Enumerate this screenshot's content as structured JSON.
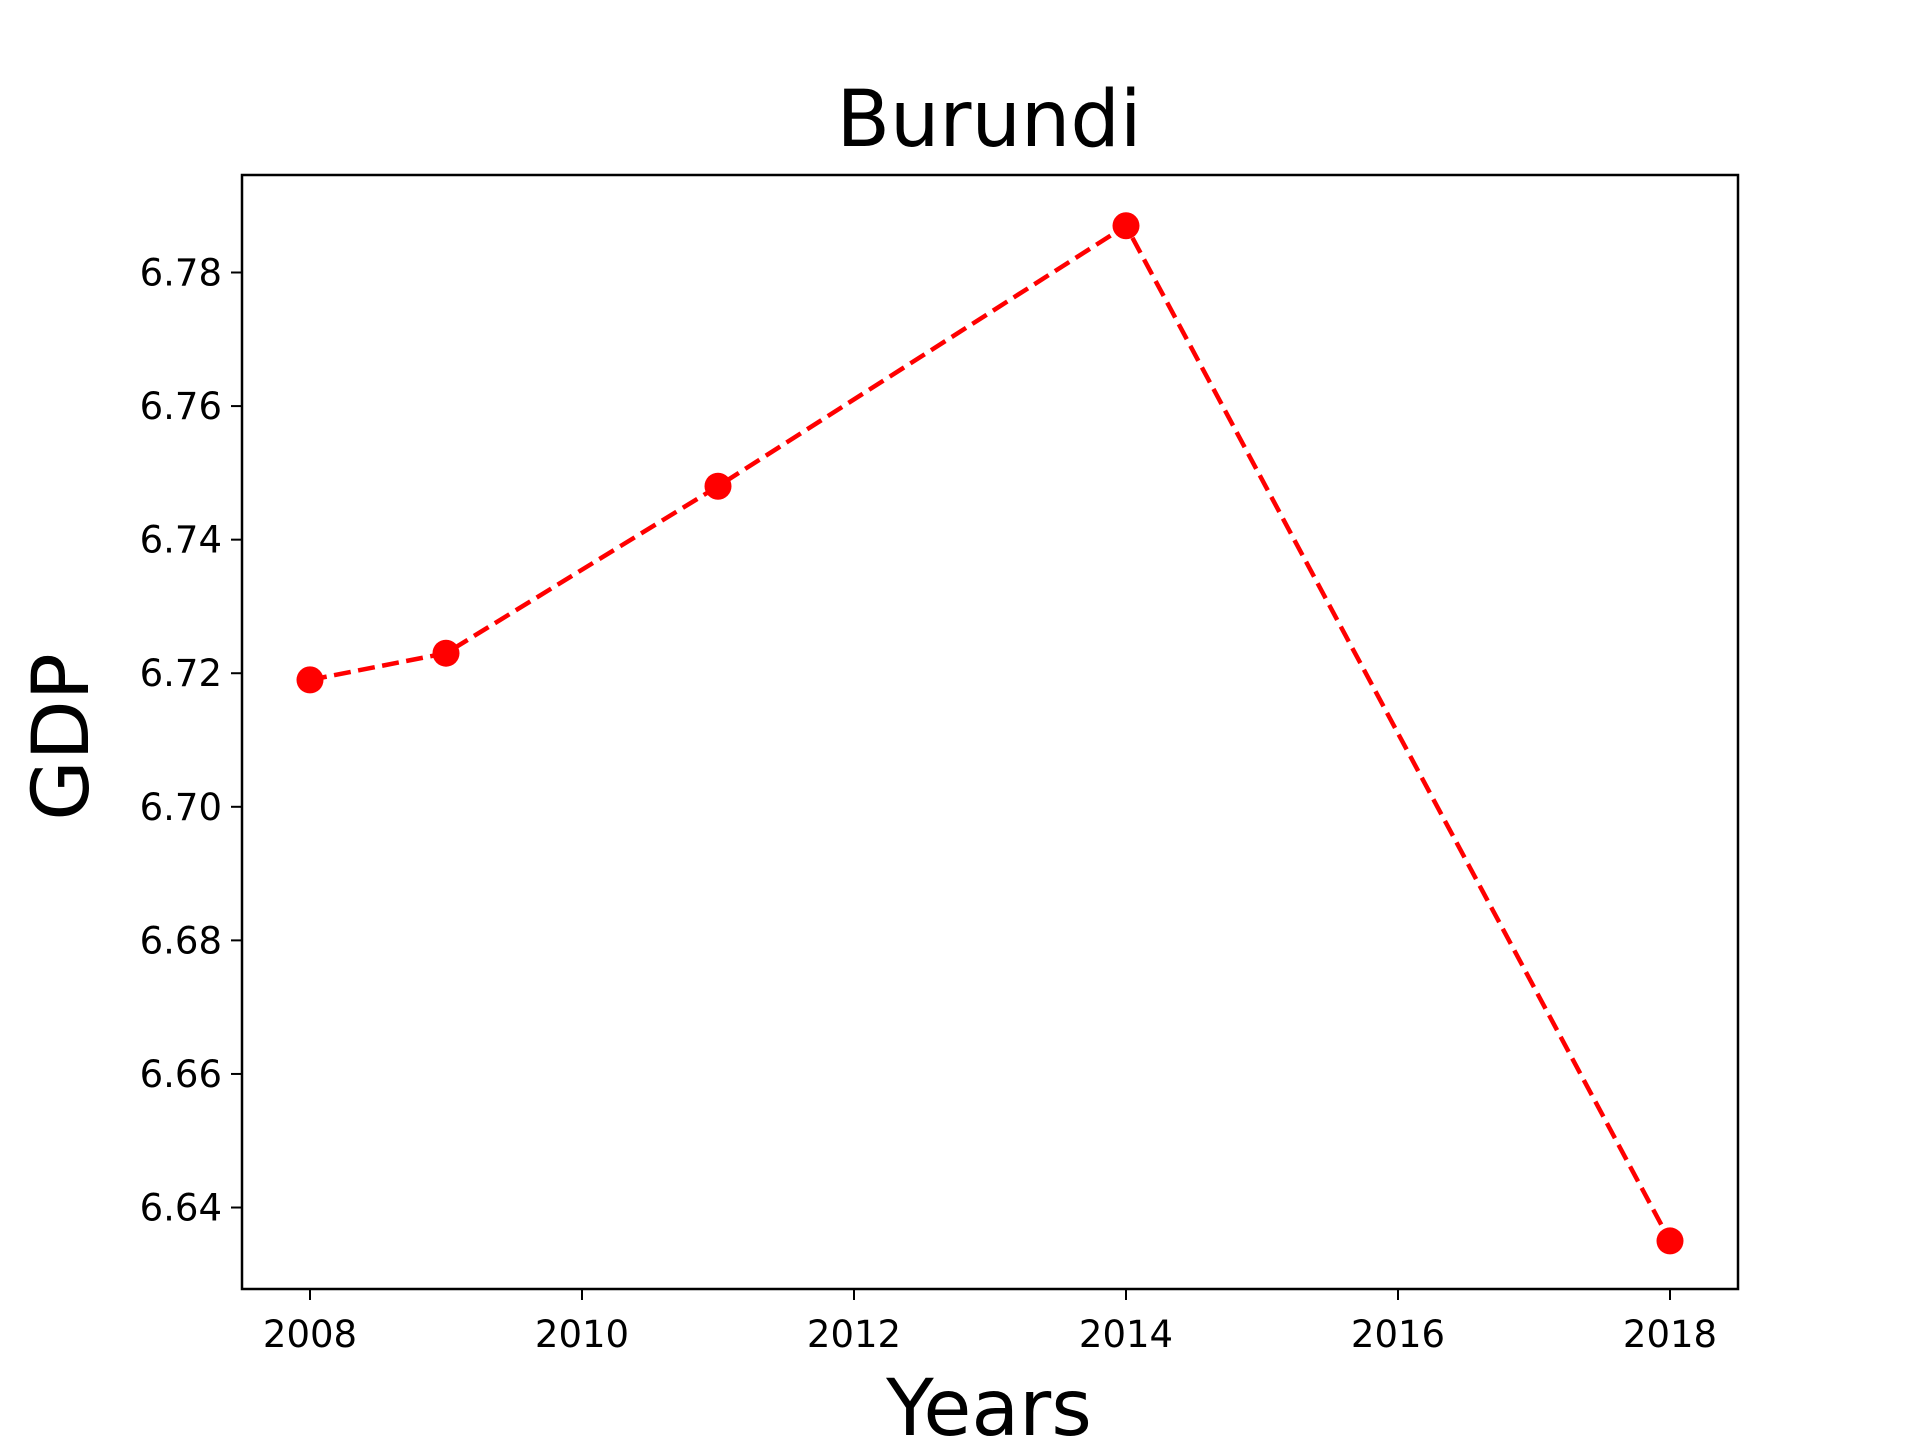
{
  "chart_data": {
    "type": "line",
    "title": "Burundi",
    "xlabel": "Years",
    "ylabel": "GDP",
    "x": [
      2008,
      2009,
      2011,
      2014,
      2018
    ],
    "series": [
      {
        "values": [
          6.719,
          6.723,
          6.748,
          6.787,
          6.635
        ],
        "color": "#ff0000",
        "line_style": "dashed",
        "marker": "circle"
      }
    ],
    "xlim": [
      2007.5,
      2018.5
    ],
    "ylim": [
      6.6278,
      6.7946
    ],
    "xticks": [
      "2008",
      "2010",
      "2012",
      "2014",
      "2016",
      "2018"
    ],
    "yticks": [
      "6.64",
      "6.66",
      "6.68",
      "6.70",
      "6.72",
      "6.74",
      "6.76",
      "6.78"
    ],
    "grid": false,
    "legend": "none"
  }
}
